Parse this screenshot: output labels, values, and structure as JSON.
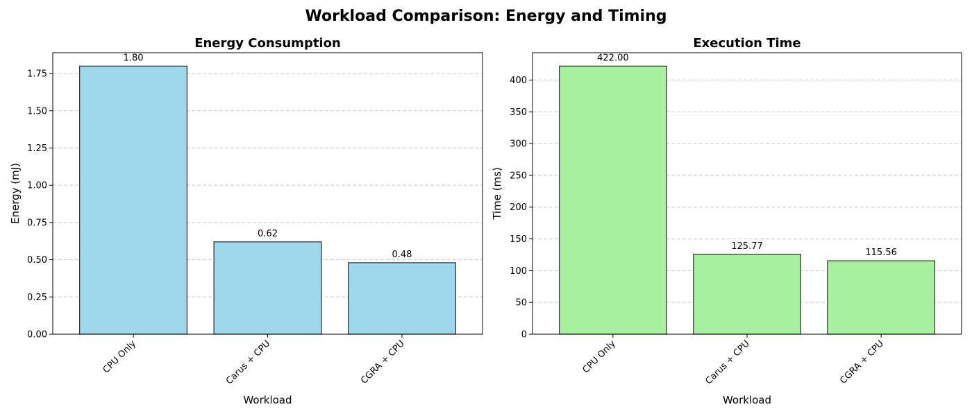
{
  "figure": {
    "title": "Workload Comparison: Energy and Timing"
  },
  "chart_data": [
    {
      "type": "bar",
      "title": "Energy Consumption",
      "xlabel": "Workload",
      "ylabel": "Energy (mJ)",
      "categories": [
        "CPU Only",
        "Carus + CPU",
        "CGRA + CPU"
      ],
      "values": [
        1.8,
        0.62,
        0.48
      ],
      "value_labels": [
        "1.80",
        "0.62",
        "0.48"
      ],
      "ylim": [
        0,
        1.89
      ],
      "yticks": [
        0.0,
        0.25,
        0.5,
        0.75,
        1.0,
        1.25,
        1.5,
        1.75
      ],
      "ytick_labels": [
        "0.00",
        "0.25",
        "0.50",
        "0.75",
        "1.00",
        "1.25",
        "1.50",
        "1.75"
      ],
      "bar_color": "#a0d7ec",
      "grid": "y-dashed"
    },
    {
      "type": "bar",
      "title": "Execution Time",
      "xlabel": "Workload",
      "ylabel": "Time (ms)",
      "categories": [
        "CPU Only",
        "Carus + CPU",
        "CGRA + CPU"
      ],
      "values": [
        422.0,
        125.77,
        115.56
      ],
      "value_labels": [
        "422.00",
        "125.77",
        "115.56"
      ],
      "ylim": [
        0,
        443.1
      ],
      "yticks": [
        0,
        50,
        100,
        150,
        200,
        250,
        300,
        350,
        400
      ],
      "ytick_labels": [
        "0",
        "50",
        "100",
        "150",
        "200",
        "250",
        "300",
        "350",
        "400"
      ],
      "bar_color": "#a8f0a0",
      "grid": "y-dashed"
    }
  ]
}
